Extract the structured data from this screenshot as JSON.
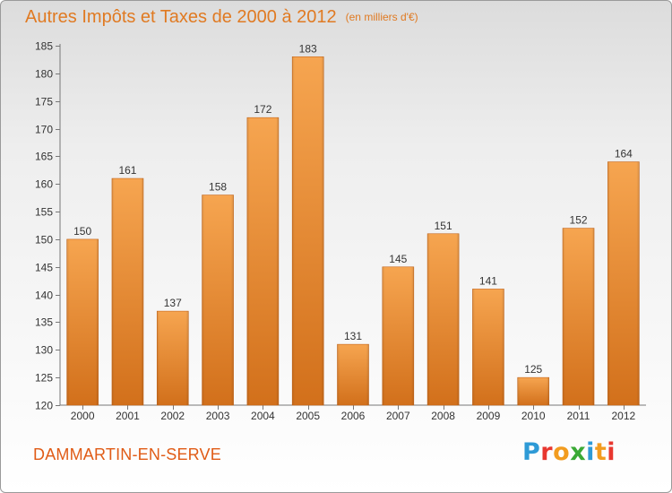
{
  "header": {
    "title": "Autres Impôts et Taxes de 2000 à 2012",
    "unit": "(en milliers d'€)"
  },
  "footer": {
    "commune": "DAMMARTIN-EN-SERVE",
    "logo": [
      "P",
      "r",
      "o",
      "x",
      "i",
      "t",
      "i"
    ],
    "logo_colors": [
      "#2e9ad6",
      "#e8372f",
      "#f29c1f",
      "#3aa935",
      "#2e9ad6",
      "#f29c1f",
      "#e8372f"
    ]
  },
  "colors": {
    "accent": "#e07a22",
    "bar_top": "#f6a550",
    "bar_bottom": "#d2701b"
  },
  "chart_data": {
    "type": "bar",
    "title": "Autres Impôts et Taxes de 2000 à 2012",
    "categories": [
      "2000",
      "2001",
      "2002",
      "2003",
      "2004",
      "2005",
      "2006",
      "2007",
      "2008",
      "2009",
      "2010",
      "2011",
      "2012"
    ],
    "values": [
      150,
      161,
      137,
      158,
      172,
      183,
      131,
      145,
      151,
      141,
      125,
      152,
      164
    ],
    "yticks": [
      120,
      125,
      130,
      135,
      140,
      145,
      150,
      155,
      160,
      165,
      170,
      175,
      180,
      185
    ],
    "ylim": [
      120,
      185
    ],
    "grid": false,
    "xlabel": "",
    "ylabel": ""
  }
}
